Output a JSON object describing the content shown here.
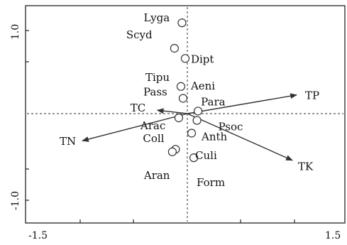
{
  "chart_data": {
    "type": "scatter",
    "xlim": [
      -1.5,
      1.5
    ],
    "ylim": [
      -1.0,
      1.0
    ],
    "x_ticks": [
      "-1.5",
      "1.5"
    ],
    "y_ticks": [
      "1.0",
      "-1.0"
    ],
    "grid": false,
    "reference_lines": {
      "x": 0.0,
      "y": 0.0
    },
    "points": [
      {
        "label": "Lyga",
        "x": -0.05,
        "y": 1.07
      },
      {
        "label": "Scyd",
        "x": -0.12,
        "y": 0.77
      },
      {
        "label": "Dipt",
        "x": -0.02,
        "y": 0.65
      },
      {
        "label": "Tipu",
        "x": -0.06,
        "y": 0.32
      },
      {
        "label": "Aeni",
        "x": -0.06,
        "y": 0.32
      },
      {
        "label": "Pass",
        "x": -0.04,
        "y": 0.18
      },
      {
        "label": "Para",
        "x": 0.1,
        "y": 0.03
      },
      {
        "label": "Psoc",
        "x": 0.09,
        "y": -0.08
      },
      {
        "label": "Arac",
        "x": -0.08,
        "y": -0.05
      },
      {
        "label": "Anth",
        "x": 0.04,
        "y": -0.23
      },
      {
        "label": "Coll",
        "x": -0.11,
        "y": -0.42
      },
      {
        "label": "Culi",
        "x": 0.06,
        "y": -0.52
      },
      {
        "label": "Aran",
        "x": -0.14,
        "y": -0.45
      },
      {
        "label": "Form",
        "x": 0.06,
        "y": -0.52
      }
    ],
    "vectors": [
      {
        "label": "TP",
        "x": 1.02,
        "y": 0.22
      },
      {
        "label": "TK",
        "x": 0.98,
        "y": -0.55
      },
      {
        "label": "TN",
        "x": -0.98,
        "y": -0.32
      },
      {
        "label": "TC",
        "x": -0.28,
        "y": 0.04
      }
    ]
  }
}
